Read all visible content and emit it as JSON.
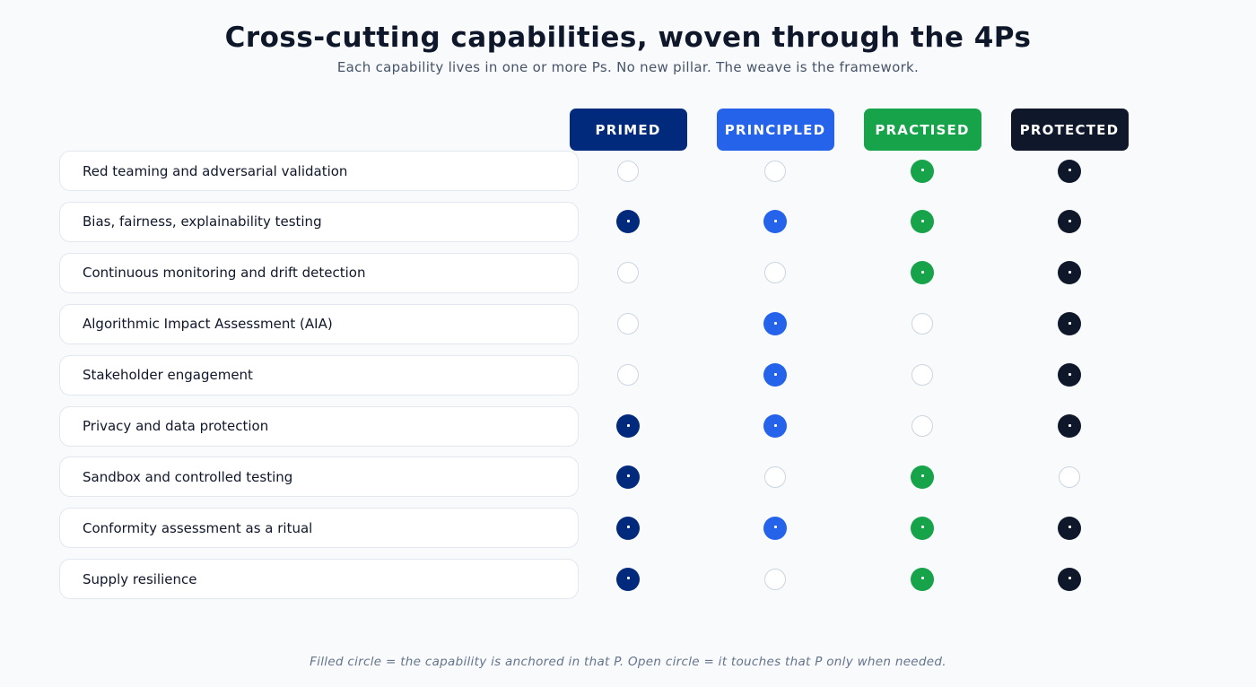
{
  "header": {
    "title": "Cross-cutting capabilities, woven through the 4Ps",
    "subtitle": "Each capability lives in one or more Ps. No new pillar. The weave is the framework."
  },
  "columns": [
    {
      "label": "PRIMED",
      "color": "#012a7c"
    },
    {
      "label": "PRINCIPLED",
      "color": "#2563eb"
    },
    {
      "label": "PRACTISED",
      "color": "#16a34a"
    },
    {
      "label": "PROTECTED",
      "color": "#0f172a"
    }
  ],
  "rows": [
    {
      "label": "Red teaming and adversarial validation",
      "anchored": [
        false,
        false,
        true,
        true
      ]
    },
    {
      "label": "Bias, fairness, explainability testing",
      "anchored": [
        true,
        true,
        true,
        true
      ]
    },
    {
      "label": "Continuous monitoring and drift detection",
      "anchored": [
        false,
        false,
        true,
        true
      ]
    },
    {
      "label": "Algorithmic Impact Assessment (AIA)",
      "anchored": [
        false,
        true,
        false,
        true
      ]
    },
    {
      "label": "Stakeholder engagement",
      "anchored": [
        false,
        true,
        false,
        true
      ]
    },
    {
      "label": "Privacy and data protection",
      "anchored": [
        true,
        true,
        false,
        true
      ]
    },
    {
      "label": "Sandbox and controlled testing",
      "anchored": [
        true,
        false,
        true,
        false
      ]
    },
    {
      "label": "Conformity assessment as a ritual",
      "anchored": [
        true,
        true,
        true,
        true
      ]
    },
    {
      "label": "Supply resilience",
      "anchored": [
        true,
        false,
        true,
        true
      ]
    }
  ],
  "legend": {
    "footnote": "Filled circle = the capability is anchored in that P. Open circle = it touches that P only when needed."
  }
}
